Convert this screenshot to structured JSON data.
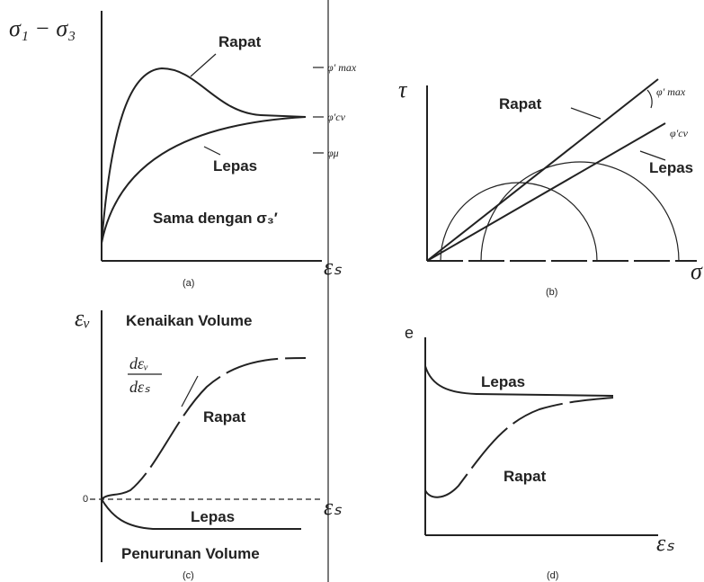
{
  "panels": [
    {
      "caption": "(a)",
      "y_axis": "σ₁ − σ₃",
      "x_axis": "εₛ",
      "labels": [
        "Rapat",
        "Lepas",
        "Sama dengan σ₃′"
      ],
      "ticks": [
        "φ′ max",
        "φ′cv",
        "φμ"
      ]
    },
    {
      "caption": "(b)",
      "y_axis": "τ",
      "x_axis": "σ",
      "labels": [
        "Rapat",
        "Lepas"
      ],
      "ticks": [
        "φ′ max",
        "φ′cv"
      ]
    },
    {
      "caption": "(c)",
      "y_axis": "εᵥ",
      "x_axis": "εₛ",
      "labels": [
        "Kenaikan Volume",
        "Rapat",
        "Lepas",
        "Penurunan Volume"
      ],
      "origin": "0",
      "slope": [
        "dεᵥ",
        "dεₛ"
      ]
    },
    {
      "caption": "(d)",
      "y_axis": "e",
      "x_axis": "εₛ",
      "labels": [
        "Lepas",
        "Rapat"
      ]
    }
  ]
}
